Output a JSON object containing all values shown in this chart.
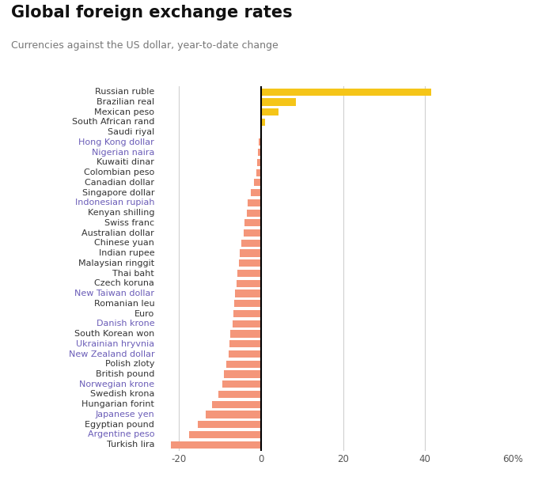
{
  "title": "Global foreign exchange rates",
  "subtitle": "Currencies against the US dollar, year-to-date change",
  "currencies": [
    "Russian ruble",
    "Brazilian real",
    "Mexican peso",
    "South African rand",
    "Saudi riyal",
    "Hong Kong dollar",
    "Nigerian naira",
    "Kuwaiti dinar",
    "Colombian peso",
    "Canadian dollar",
    "Singapore dollar",
    "Indonesian rupiah",
    "Kenyan shilling",
    "Swiss franc",
    "Australian dollar",
    "Chinese yuan",
    "Indian rupee",
    "Malaysian ringgit",
    "Thai baht",
    "Czech koruna",
    "New Taiwan dollar",
    "Romanian leu",
    "Euro",
    "Danish krone",
    "South Korean won",
    "Ukrainian hryvnia",
    "New Zealand dollar",
    "Polish zloty",
    "British pound",
    "Norwegian krone",
    "Swedish krona",
    "Hungarian forint",
    "Japanese yen",
    "Egyptian pound",
    "Argentine peso",
    "Turkish lira"
  ],
  "values": [
    41.5,
    8.5,
    4.2,
    1.0,
    0.0,
    -0.5,
    -0.8,
    -1.0,
    -1.2,
    -1.8,
    -2.5,
    -3.2,
    -3.5,
    -4.0,
    -4.3,
    -4.8,
    -5.2,
    -5.5,
    -5.8,
    -6.0,
    -6.3,
    -6.5,
    -6.8,
    -7.0,
    -7.5,
    -7.8,
    -8.0,
    -8.5,
    -9.0,
    -9.5,
    -10.5,
    -12.0,
    -13.5,
    -15.5,
    -17.5,
    -22.0
  ],
  "positive_color": "#f5c518",
  "negative_color": "#f4967a",
  "label_colors": {
    "Russian ruble": "#333333",
    "Brazilian real": "#333333",
    "Mexican peso": "#333333",
    "South African rand": "#333333",
    "Saudi riyal": "#333333",
    "Hong Kong dollar": "#6b5db8",
    "Nigerian naira": "#6b5db8",
    "Kuwaiti dinar": "#333333",
    "Colombian peso": "#333333",
    "Canadian dollar": "#333333",
    "Singapore dollar": "#333333",
    "Indonesian rupiah": "#6b5db8",
    "Kenyan shilling": "#333333",
    "Swiss franc": "#333333",
    "Australian dollar": "#333333",
    "Chinese yuan": "#333333",
    "Indian rupee": "#333333",
    "Malaysian ringgit": "#333333",
    "Thai baht": "#333333",
    "Czech koruna": "#333333",
    "New Taiwan dollar": "#6b5db8",
    "Romanian leu": "#333333",
    "Euro": "#333333",
    "Danish krone": "#6b5db8",
    "South Korean won": "#333333",
    "Ukrainian hryvnia": "#6b5db8",
    "New Zealand dollar": "#6b5db8",
    "Polish zloty": "#333333",
    "British pound": "#333333",
    "Norwegian krone": "#6b5db8",
    "Swedish krona": "#333333",
    "Hungarian forint": "#333333",
    "Japanese yen": "#6b5db8",
    "Egyptian pound": "#333333",
    "Argentine peso": "#6b5db8",
    "Turkish lira": "#333333"
  },
  "xlim_left": -25,
  "xlim_right": 65,
  "xticks": [
    -20,
    0,
    20,
    40
  ],
  "background_color": "#ffffff",
  "grid_color": "#d0d0d0",
  "title_fontsize": 15,
  "subtitle_fontsize": 9,
  "tick_fontsize": 8.5,
  "label_fontsize": 8.0,
  "bar_height": 0.72
}
